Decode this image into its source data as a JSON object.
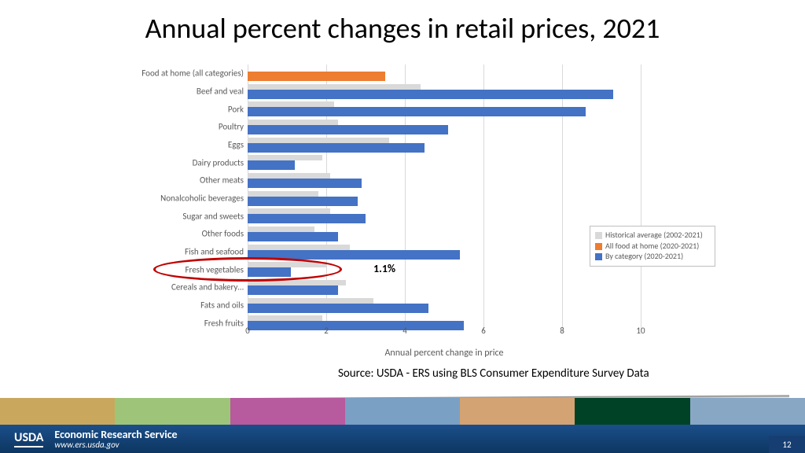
{
  "title": "Annual percent changes in retail prices, 2021",
  "chart": {
    "type": "bar-horizontal-grouped",
    "x_axis_label": "Annual percent change in price",
    "xlim": [
      0,
      10
    ],
    "xtick_step": 2,
    "xticks": [
      0,
      2,
      4,
      6,
      8,
      10
    ],
    "grid_color": "#d9d9d9",
    "colors": {
      "historical": "#d9d9d9",
      "all_food": "#ed7d31",
      "by_category": "#4472c4"
    },
    "series": [
      {
        "label": "Food at home (all categories)",
        "historical": null,
        "value": 3.5,
        "color_key": "all_food"
      },
      {
        "label": "Beef and veal",
        "historical": 4.4,
        "value": 9.3,
        "color_key": "by_category"
      },
      {
        "label": "Pork",
        "historical": 2.2,
        "value": 8.6,
        "color_key": "by_category"
      },
      {
        "label": "Poultry",
        "historical": 2.3,
        "value": 5.1,
        "color_key": "by_category"
      },
      {
        "label": "Eggs",
        "historical": 3.6,
        "value": 4.5,
        "color_key": "by_category"
      },
      {
        "label": "Dairy products",
        "historical": 1.9,
        "value": 1.2,
        "color_key": "by_category"
      },
      {
        "label": "Other meats",
        "historical": 2.1,
        "value": 2.9,
        "color_key": "by_category"
      },
      {
        "label": "Nonalcoholic beverages",
        "historical": 1.8,
        "value": 2.8,
        "color_key": "by_category"
      },
      {
        "label": "Sugar and sweets",
        "historical": 2.1,
        "value": 3.0,
        "color_key": "by_category"
      },
      {
        "label": "Other foods",
        "historical": 1.7,
        "value": 2.3,
        "color_key": "by_category"
      },
      {
        "label": "Fish and seafood",
        "historical": 2.6,
        "value": 5.4,
        "color_key": "by_category"
      },
      {
        "label": "Fresh vegetables",
        "historical": 2.0,
        "value": 1.1,
        "color_key": "by_category"
      },
      {
        "label": "Cereals and bakery…",
        "historical": 2.5,
        "value": 2.3,
        "color_key": "by_category"
      },
      {
        "label": "Fats and oils",
        "historical": 3.2,
        "value": 4.6,
        "color_key": "by_category"
      },
      {
        "label": "Fresh fruits",
        "historical": 1.9,
        "value": 5.5,
        "color_key": "by_category"
      }
    ],
    "legend": [
      {
        "key": "historical",
        "label": "Historical average (2002-2021)"
      },
      {
        "key": "all_food",
        "label": "All food at home (2020-2021)"
      },
      {
        "key": "by_category",
        "label": "By category (2020-2021)"
      }
    ],
    "annotation": {
      "text": "1.1%",
      "row_index": 11
    },
    "highlight_row_index": 11
  },
  "source": "Source: USDA - ERS using BLS Consumer Expenditure Survey Data",
  "footer": {
    "logo": "USDA",
    "org": "Economic Research Service",
    "url": "www.ers.usda.gov",
    "page": "12",
    "image_strip_colors": [
      "#c9a85e",
      "#9ec47a",
      "#b85a9e",
      "#7aa0c4",
      "#d4a373",
      "#004225",
      "#88a7c4"
    ]
  }
}
